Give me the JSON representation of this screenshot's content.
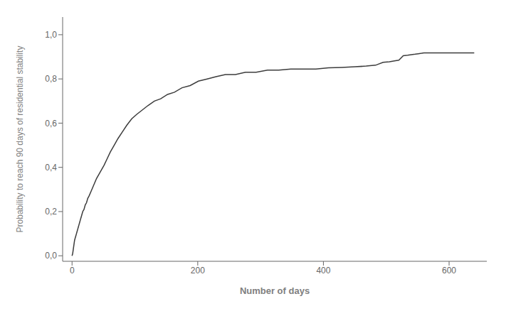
{
  "chart_data": {
    "type": "line",
    "xlabel": "Number of days",
    "ylabel": "Probability to reach 90 days of residential stability",
    "x": [
      0,
      1,
      2,
      3,
      4,
      5,
      6,
      7,
      8,
      9,
      10,
      11,
      12,
      13,
      14,
      15,
      17,
      19,
      21,
      23,
      25,
      27,
      30,
      33,
      36,
      39,
      43,
      47,
      51,
      56,
      61,
      67,
      73,
      80,
      87,
      95,
      103,
      112,
      121,
      131,
      141,
      152,
      163,
      175,
      188,
      201,
      215,
      229,
      244,
      260,
      276,
      293,
      311,
      329,
      348,
      368,
      388,
      408,
      429,
      450,
      468,
      483,
      495,
      505,
      513,
      520,
      527,
      534,
      540,
      546,
      551,
      556,
      560,
      620,
      640
    ],
    "values": [
      0.0,
      0.01,
      0.03,
      0.05,
      0.07,
      0.08,
      0.09,
      0.1,
      0.11,
      0.12,
      0.13,
      0.14,
      0.15,
      0.16,
      0.17,
      0.18,
      0.2,
      0.21,
      0.23,
      0.24,
      0.26,
      0.27,
      0.29,
      0.31,
      0.33,
      0.35,
      0.37,
      0.39,
      0.41,
      0.44,
      0.47,
      0.5,
      0.53,
      0.56,
      0.59,
      0.62,
      0.64,
      0.66,
      0.68,
      0.7,
      0.71,
      0.73,
      0.74,
      0.76,
      0.77,
      0.79,
      0.8,
      0.81,
      0.82,
      0.82,
      0.83,
      0.83,
      0.84,
      0.84,
      0.845,
      0.845,
      0.845,
      0.85,
      0.852,
      0.855,
      0.858,
      0.862,
      0.875,
      0.878,
      0.882,
      0.885,
      0.905,
      0.907,
      0.91,
      0.912,
      0.914,
      0.916,
      0.918,
      0.918,
      0.918
    ],
    "color": "#3c3c3c",
    "xlim": [
      -15,
      660
    ],
    "ylim": [
      -0.025,
      1.08
    ],
    "xticks": [
      0,
      200,
      400,
      600
    ],
    "yticks": [
      {
        "value": 0.0,
        "label": "0,0"
      },
      {
        "value": 0.2,
        "label": "0,2"
      },
      {
        "value": 0.4,
        "label": "0,4"
      },
      {
        "value": 0.6,
        "label": "0,6"
      },
      {
        "value": 0.8,
        "label": "0,8"
      },
      {
        "value": 1.0,
        "label": "1,0"
      }
    ],
    "grid": false
  }
}
